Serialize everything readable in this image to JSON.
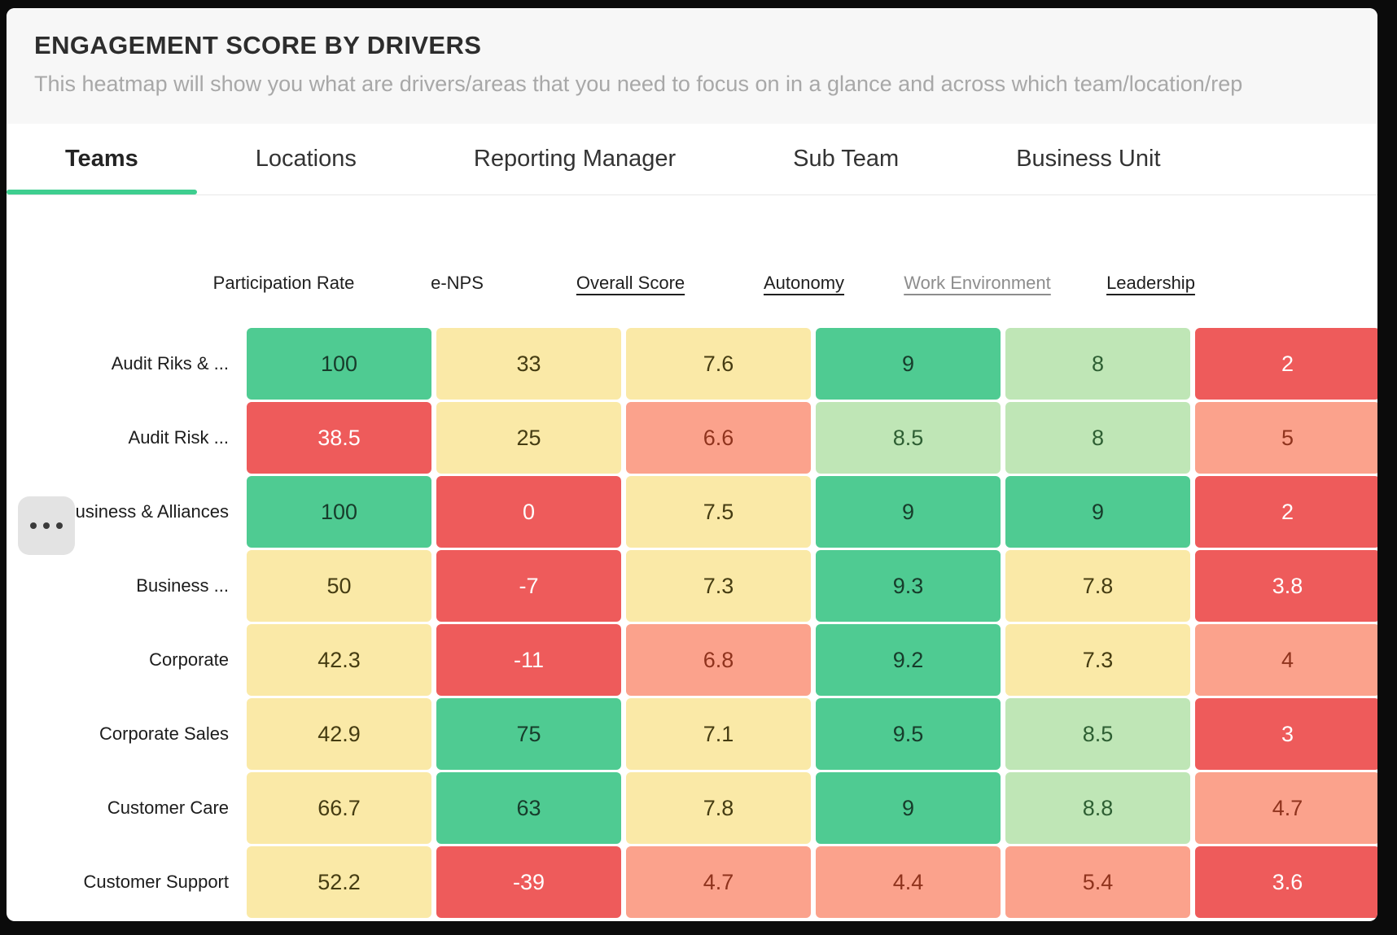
{
  "header": {
    "title": "ENGAGEMENT SCORE BY DRIVERS",
    "subtitle": "This heatmap will show you what are drivers/areas that you need to focus on in a glance and across which team/location/rep"
  },
  "tabs": [
    {
      "label": "Teams",
      "active": true
    },
    {
      "label": "Locations",
      "active": false
    },
    {
      "label": "Reporting Manager",
      "active": false
    },
    {
      "label": "Sub Team",
      "active": false
    },
    {
      "label": "Business Unit",
      "active": false
    }
  ],
  "more_button": {
    "icon": "ellipsis-icon"
  },
  "heatmap": {
    "columns": [
      {
        "label": "Participation Rate",
        "underlined": false,
        "muted": false
      },
      {
        "label": "e-NPS",
        "underlined": false,
        "muted": false
      },
      {
        "label": "Overall Score",
        "underlined": true,
        "muted": false
      },
      {
        "label": "Autonomy",
        "underlined": true,
        "muted": false
      },
      {
        "label": "Work Environment",
        "underlined": true,
        "muted": true
      },
      {
        "label": "Leadership",
        "underlined": true,
        "muted": false
      }
    ],
    "rows": [
      {
        "label": "Audit Riks & ...",
        "cells": [
          {
            "value": "100",
            "tone": "green"
          },
          {
            "value": "33",
            "tone": "yellow"
          },
          {
            "value": "7.6",
            "tone": "yellow"
          },
          {
            "value": "9",
            "tone": "green"
          },
          {
            "value": "8",
            "tone": "light_green"
          },
          {
            "value": "2",
            "tone": "red"
          }
        ]
      },
      {
        "label": "Audit Risk ...",
        "cells": [
          {
            "value": "38.5",
            "tone": "red"
          },
          {
            "value": "25",
            "tone": "yellow"
          },
          {
            "value": "6.6",
            "tone": "salmon"
          },
          {
            "value": "8.5",
            "tone": "light_green"
          },
          {
            "value": "8",
            "tone": "light_green"
          },
          {
            "value": "5",
            "tone": "salmon"
          }
        ]
      },
      {
        "label": "Business & Alliances",
        "cells": [
          {
            "value": "100",
            "tone": "green"
          },
          {
            "value": "0",
            "tone": "red"
          },
          {
            "value": "7.5",
            "tone": "yellow"
          },
          {
            "value": "9",
            "tone": "green"
          },
          {
            "value": "9",
            "tone": "green"
          },
          {
            "value": "2",
            "tone": "red"
          }
        ]
      },
      {
        "label": "Business ...",
        "cells": [
          {
            "value": "50",
            "tone": "yellow"
          },
          {
            "value": "-7",
            "tone": "red"
          },
          {
            "value": "7.3",
            "tone": "yellow"
          },
          {
            "value": "9.3",
            "tone": "green"
          },
          {
            "value": "7.8",
            "tone": "yellow"
          },
          {
            "value": "3.8",
            "tone": "red"
          }
        ]
      },
      {
        "label": "Corporate",
        "cells": [
          {
            "value": "42.3",
            "tone": "yellow"
          },
          {
            "value": "-11",
            "tone": "red"
          },
          {
            "value": "6.8",
            "tone": "salmon"
          },
          {
            "value": "9.2",
            "tone": "green"
          },
          {
            "value": "7.3",
            "tone": "yellow"
          },
          {
            "value": "4",
            "tone": "salmon"
          }
        ]
      },
      {
        "label": "Corporate Sales",
        "cells": [
          {
            "value": "42.9",
            "tone": "yellow"
          },
          {
            "value": "75",
            "tone": "green"
          },
          {
            "value": "7.1",
            "tone": "yellow"
          },
          {
            "value": "9.5",
            "tone": "green"
          },
          {
            "value": "8.5",
            "tone": "light_green"
          },
          {
            "value": "3",
            "tone": "red"
          }
        ]
      },
      {
        "label": "Customer Care",
        "cells": [
          {
            "value": "66.7",
            "tone": "yellow"
          },
          {
            "value": "63",
            "tone": "green"
          },
          {
            "value": "7.8",
            "tone": "yellow"
          },
          {
            "value": "9",
            "tone": "green"
          },
          {
            "value": "8.8",
            "tone": "light_green"
          },
          {
            "value": "4.7",
            "tone": "salmon"
          }
        ]
      },
      {
        "label": "Customer Support",
        "cells": [
          {
            "value": "52.2",
            "tone": "yellow"
          },
          {
            "value": "-39",
            "tone": "red"
          },
          {
            "value": "4.7",
            "tone": "salmon"
          },
          {
            "value": "4.4",
            "tone": "salmon"
          },
          {
            "value": "5.4",
            "tone": "salmon"
          },
          {
            "value": "3.6",
            "tone": "red"
          }
        ]
      }
    ]
  },
  "colors": {
    "green": {
      "bg": "#4fcb92",
      "fg": "#173c2b"
    },
    "light_green": {
      "bg": "#bfe6b6",
      "fg": "#2e5f33"
    },
    "yellow": {
      "bg": "#fae9a7",
      "fg": "#453c12"
    },
    "salmon": {
      "bg": "#fba28c",
      "fg": "#8f331d"
    },
    "red": {
      "bg": "#ee5b5b",
      "fg": "#ffffff"
    },
    "tab_underline": "#3ece8f"
  },
  "chart_data": {
    "type": "heatmap",
    "title": "ENGAGEMENT SCORE BY DRIVERS",
    "x_categories": [
      "Participation Rate",
      "e-NPS",
      "Overall Score",
      "Autonomy",
      "Work Environment",
      "Leadership"
    ],
    "y_categories": [
      "Audit Riks & ...",
      "Audit Risk ...",
      "Business & Alliances",
      "Business ...",
      "Corporate",
      "Corporate Sales",
      "Customer Care",
      "Customer Support"
    ],
    "values": [
      [
        100,
        33,
        7.6,
        9,
        8,
        2
      ],
      [
        38.5,
        25,
        6.6,
        8.5,
        8,
        5
      ],
      [
        100,
        0,
        7.5,
        9,
        9,
        2
      ],
      [
        50,
        -7,
        7.3,
        9.3,
        7.8,
        3.8
      ],
      [
        42.3,
        -11,
        6.8,
        9.2,
        7.3,
        4
      ],
      [
        42.9,
        75,
        7.1,
        9.5,
        8.5,
        3
      ],
      [
        66.7,
        63,
        7.8,
        9,
        8.8,
        4.7
      ],
      [
        52.2,
        -39,
        4.7,
        4.4,
        5.4,
        3.6
      ]
    ],
    "legend": "off",
    "grid": "off",
    "color_scale": "red-yellow-green (low to high)"
  }
}
